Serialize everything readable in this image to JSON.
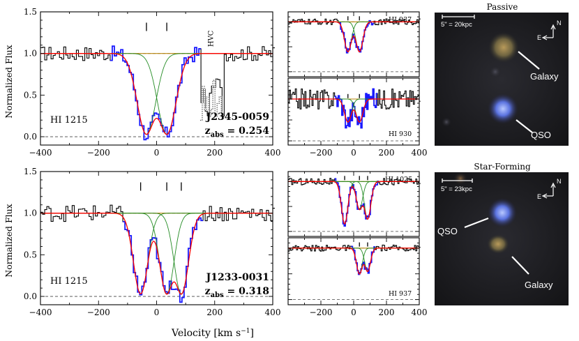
{
  "figure": {
    "xlabel": "Velocity [km s",
    "xlabel_sup": "−1",
    "xlabel_end": "]",
    "ylabel": "Normalized Flux"
  },
  "chart_data": [
    {
      "type": "line",
      "panel": "top-left",
      "ion_label": "HI 1215",
      "system": "J2345-0059",
      "z_label": "z",
      "z_sub": "abs",
      "z_value": " = 0.254",
      "annotation": "HVC",
      "xlim": [
        -400,
        400
      ],
      "ylim": [
        -0.1,
        1.5
      ],
      "x_ticks": [
        "−400",
        "−200",
        "0",
        "200",
        "400"
      ],
      "y_ticks": [
        "0.0",
        "0.5",
        "1.0",
        "1.5"
      ],
      "component_velocities": [
        -35,
        35
      ],
      "components": [
        {
          "v": -35,
          "depth": 0.97,
          "b": 45
        },
        {
          "v": 35,
          "depth": 0.97,
          "b": 45
        }
      ],
      "fit_window": [
        -165,
        150
      ],
      "noise": 0.09,
      "hvc": {
        "range": [
          150,
          230
        ],
        "level": 0.45
      }
    },
    {
      "type": "line",
      "panel": "top-middle-upper",
      "ion_label": "HI 937",
      "xlim": [
        -400,
        400
      ],
      "ylim": [
        -0.1,
        1.2
      ],
      "x_ticks": [],
      "component_velocities": [
        -35,
        35
      ],
      "components": [
        {
          "v": -35,
          "depth": 0.6,
          "b": 30
        },
        {
          "v": 35,
          "depth": 0.6,
          "b": 30
        }
      ],
      "fit_window": [
        -100,
        120
      ],
      "noise": 0.06
    },
    {
      "type": "line",
      "panel": "top-middle-lower",
      "ion_label": "HI 930",
      "xlim": [
        -400,
        400
      ],
      "ylim": [
        -0.1,
        1.5
      ],
      "x_ticks": [
        "−200",
        "0",
        "200",
        "400"
      ],
      "component_velocities": [
        -35,
        35
      ],
      "components": [
        {
          "v": -35,
          "depth": 0.55,
          "b": 30
        },
        {
          "v": 35,
          "depth": 0.55,
          "b": 30
        }
      ],
      "fit_window": [
        -120,
        140
      ],
      "noise": 0.25
    },
    {
      "type": "line",
      "panel": "bottom-left",
      "ion_label": "HI 1215",
      "system": "J1233-0031",
      "z_label": "z",
      "z_sub": "abs",
      "z_value": " = 0.318",
      "xlim": [
        -400,
        400
      ],
      "ylim": [
        -0.1,
        1.5
      ],
      "x_ticks": [
        "−400",
        "−200",
        "0",
        "200",
        "400"
      ],
      "y_ticks": [
        "0.0",
        "0.5",
        "1.0",
        "1.5"
      ],
      "component_velocities": [
        -55,
        35,
        85
      ],
      "components": [
        {
          "v": -55,
          "depth": 0.97,
          "b": 35
        },
        {
          "v": 35,
          "depth": 0.97,
          "b": 35
        },
        {
          "v": 85,
          "depth": 0.97,
          "b": 35
        }
      ],
      "fit_window": [
        -120,
        155
      ],
      "noise": 0.1
    },
    {
      "type": "line",
      "panel": "bottom-middle-upper",
      "ion_label": "HI 1025",
      "xlim": [
        -400,
        400
      ],
      "ylim": [
        -0.1,
        1.2
      ],
      "x_ticks": [],
      "component_velocities": [
        -55,
        35,
        85
      ],
      "components": [
        {
          "v": -55,
          "depth": 0.85,
          "b": 28
        },
        {
          "v": 35,
          "depth": 0.55,
          "b": 28
        },
        {
          "v": 85,
          "depth": 0.75,
          "b": 28
        }
      ],
      "fit_window": [
        -120,
        150
      ],
      "noise": 0.07
    },
    {
      "type": "line",
      "panel": "bottom-middle-lower",
      "ion_label": "HI 937",
      "xlim": [
        -400,
        400
      ],
      "ylim": [
        -0.1,
        1.2
      ],
      "x_ticks": [
        "−200",
        "0",
        "200",
        "400"
      ],
      "component_velocities": [
        35,
        85
      ],
      "components": [
        {
          "v": 35,
          "depth": 0.5,
          "b": 25
        },
        {
          "v": 85,
          "depth": 0.45,
          "b": 25
        }
      ],
      "fit_window": [
        -20,
        130
      ],
      "noise": 0.06
    }
  ],
  "images": [
    {
      "title": "Passive",
      "scale_label": "5\" = 20kpc",
      "north": "N",
      "east": "E",
      "galaxy_label": "Galaxy",
      "qso_label": "QSO"
    },
    {
      "title": "Star-Forming",
      "scale_label": "5\" = 23kpc",
      "north": "N",
      "east": "E",
      "galaxy_label": "Galaxy",
      "qso_label": "QSO"
    }
  ],
  "colors": {
    "data": "#000000",
    "fit_region": "#1a1aff",
    "model": "#ff0000",
    "components": "#228b22",
    "continuum": "#b8860b"
  }
}
